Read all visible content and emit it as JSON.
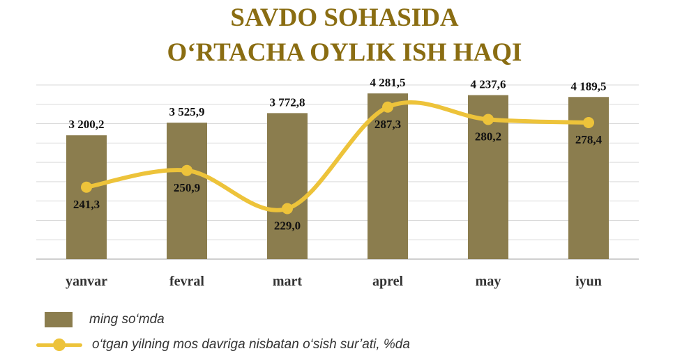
{
  "title_line1": "SAVDO SOHASIDA",
  "title_line2": "O‘RTACHA OYLIK ISH HAQI",
  "colors": {
    "title": "#8a6d12",
    "bar": "#8b7d4e",
    "line": "#edc33a",
    "grid": "#d9d9d9"
  },
  "chart_data": {
    "type": "bar",
    "categories": [
      "yanvar",
      "fevral",
      "mart",
      "aprel",
      "may",
      "iyun"
    ],
    "series": [
      {
        "name": "ming so‘mda",
        "type": "bar",
        "values": [
          3200.2,
          3525.9,
          3772.8,
          4281.5,
          4237.6,
          4189.5
        ],
        "labels": [
          "3 200,2",
          "3 525,9",
          "3 772,8",
          "4 281,5",
          "4 237,6",
          "4 189,5"
        ]
      },
      {
        "name": "o‘tgan yilning mos davriga nisbatan o‘sish sur’ati, %da",
        "type": "line",
        "values": [
          241.3,
          250.9,
          229.0,
          287.3,
          280.2,
          278.4
        ],
        "labels": [
          "241,3",
          "250,9",
          "229,0",
          "287,3",
          "280,2",
          "278,4"
        ]
      }
    ],
    "ylim_bar": [
      0,
      4500
    ],
    "ylim_line": [
      200,
      300
    ],
    "grid": true,
    "legend_position": "bottom-left"
  }
}
